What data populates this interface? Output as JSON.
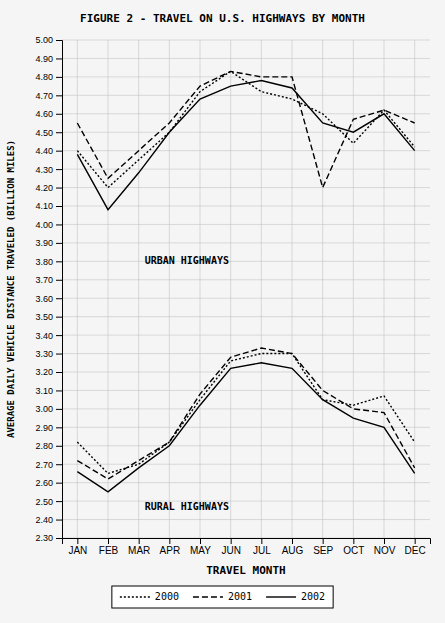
{
  "chart_data": {
    "type": "line",
    "title": "FIGURE 2 - TRAVEL ON U.S. HIGHWAYS BY MONTH",
    "x_label": "TRAVEL MONTH",
    "y_label": "AVERAGE DAILY VEHICLE DISTANCE TRAVELED (BILLION MILES)",
    "categories": [
      "JAN",
      "FEB",
      "MAR",
      "APR",
      "MAY",
      "JUN",
      "JUL",
      "AUG",
      "SEP",
      "OCT",
      "NOV",
      "DEC"
    ],
    "series": [
      {
        "name": "2000",
        "color": "#000000",
        "line_style": "dotted",
        "values": [
          4.4,
          4.2,
          4.35,
          4.5,
          4.72,
          4.83,
          4.72,
          4.68,
          4.6,
          4.44,
          4.62,
          4.42
        ]
      },
      {
        "name": "2001",
        "color": "#000000",
        "line_style": "dashed",
        "values": [
          4.55,
          4.25,
          4.4,
          4.55,
          4.75,
          4.83,
          4.8,
          4.8,
          4.2,
          4.57,
          4.62,
          4.55
        ]
      },
      {
        "name": "2002",
        "color": "#000000",
        "line_style": "solid",
        "values": [
          4.38,
          4.08,
          4.28,
          4.5,
          4.68,
          4.75,
          4.78,
          4.74,
          4.55,
          4.5,
          4.6,
          4.4
        ]
      },
      {
        "name": "2000",
        "color": "#000000",
        "line_style": "dotted",
        "values": [
          2.82,
          2.65,
          2.7,
          2.82,
          3.05,
          3.26,
          3.3,
          3.3,
          3.05,
          3.02,
          3.07,
          2.82
        ]
      },
      {
        "name": "2001",
        "color": "#000000",
        "line_style": "dashed",
        "values": [
          2.72,
          2.62,
          2.72,
          2.82,
          3.08,
          3.28,
          3.33,
          3.3,
          3.1,
          3.0,
          2.98,
          2.68
        ]
      },
      {
        "name": "2002",
        "color": "#000000",
        "line_style": "solid",
        "values": [
          2.66,
          2.55,
          2.68,
          2.8,
          3.02,
          3.22,
          3.25,
          3.22,
          3.05,
          2.95,
          2.9,
          2.65
        ]
      }
    ],
    "annotations": [
      {
        "text": "URBAN HIGHWAYS",
        "x": "MAR",
        "y": 3.8
      },
      {
        "text": "RURAL HIGHWAYS",
        "x": "MAR",
        "y": 2.47
      }
    ],
    "ylim": [
      2.3,
      5.0
    ],
    "yticks": [
      {
        "value": 2.3,
        "label": "2.30"
      },
      {
        "value": 2.4,
        "label": "2.40"
      },
      {
        "value": 2.5,
        "label": "2.50"
      },
      {
        "value": 2.6,
        "label": "2.60"
      },
      {
        "value": 2.7,
        "label": "2.70"
      },
      {
        "value": 2.8,
        "label": "2.80"
      },
      {
        "value": 2.9,
        "label": "2.90"
      },
      {
        "value": 3,
        "label": "3.00"
      },
      {
        "value": 3.1,
        "label": "3.10"
      },
      {
        "value": 3.2,
        "label": "3.20"
      },
      {
        "value": 3.3,
        "label": "3.30"
      },
      {
        "value": 3.4,
        "label": "3.40"
      },
      {
        "value": 3.5,
        "label": "3.50"
      },
      {
        "value": 3.6,
        "label": "3.60"
      },
      {
        "value": 3.7,
        "label": "3.70"
      },
      {
        "value": 3.8,
        "label": "3.80"
      },
      {
        "value": 3.9,
        "label": "3.90"
      },
      {
        "value": 4,
        "label": "4.00"
      },
      {
        "value": 4.1,
        "label": "4.10"
      },
      {
        "value": 4.2,
        "label": "4.20"
      },
      {
        "value": 4.3,
        "label": "4.30"
      },
      {
        "value": 4.4,
        "label": "4.40"
      },
      {
        "value": 4.5,
        "label": "4.50"
      },
      {
        "value": 4.6,
        "label": "4.60"
      },
      {
        "value": 4.7,
        "label": "4.70"
      },
      {
        "value": 4.8,
        "label": "4.80"
      },
      {
        "value": 4.9,
        "label": "4.90"
      },
      {
        "value": 5,
        "label": "5.00"
      }
    ],
    "grid": true,
    "legend": "bottom"
  }
}
